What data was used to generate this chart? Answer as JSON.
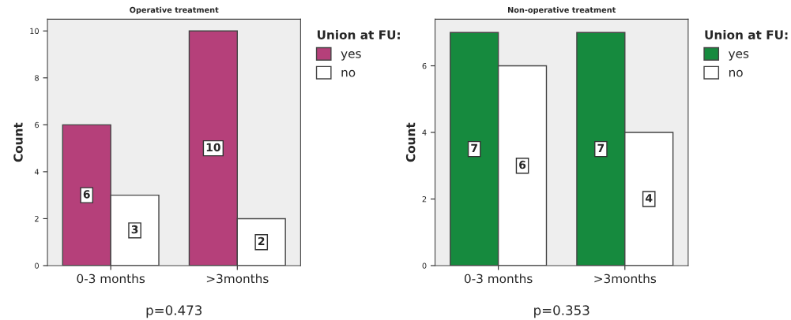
{
  "chart_data": [
    {
      "type": "bar",
      "title": "Operative treatment",
      "ylabel": "Count",
      "categories": [
        "0-3 months",
        ">3months"
      ],
      "series": [
        {
          "name": "yes",
          "color": "#b5407a",
          "values": [
            6,
            10
          ]
        },
        {
          "name": "no",
          "color": "#ffffff",
          "values": [
            3,
            2
          ]
        }
      ],
      "ylim": [
        0,
        10.5
      ],
      "yticks": [
        0,
        2,
        4,
        6,
        8,
        10
      ],
      "data_labels": true,
      "legend": "top right",
      "legend_title": "Union at FU:",
      "annotations": [
        "p=0.473"
      ]
    },
    {
      "type": "bar",
      "title": "Non-operative treatment",
      "ylabel": "Count",
      "categories": [
        "0-3 months",
        ">3months"
      ],
      "series": [
        {
          "name": "yes",
          "color": "#168a3e",
          "values": [
            7,
            7
          ]
        },
        {
          "name": "no",
          "color": "#ffffff",
          "values": [
            6,
            4
          ]
        }
      ],
      "ylim": [
        0,
        7.4
      ],
      "yticks": [
        0,
        2,
        4,
        6
      ],
      "data_labels": true,
      "legend": "top right",
      "legend_title": "Union at FU:",
      "annotations": [
        "p=0.353"
      ]
    }
  ]
}
